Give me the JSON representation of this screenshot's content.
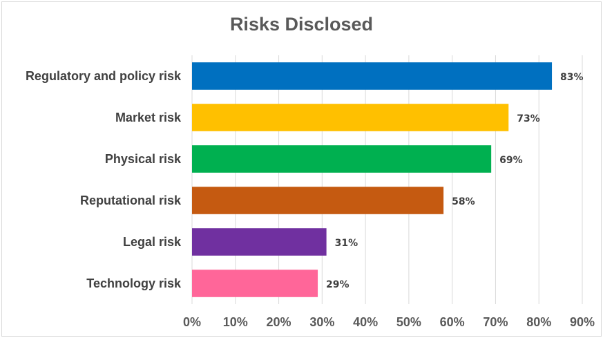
{
  "chart_data": {
    "type": "bar",
    "orientation": "horizontal",
    "title": "Risks Disclosed",
    "xlabel": "",
    "ylabel": "",
    "categories": [
      "Regulatory and policy risk",
      "Market risk",
      "Physical risk",
      "Reputational risk",
      "Legal risk",
      "Technology risk"
    ],
    "values": [
      83,
      73,
      69,
      58,
      31,
      29
    ],
    "data_labels": [
      "83%",
      "73%",
      "69%",
      "58%",
      "31%",
      "29%"
    ],
    "colors": [
      "#0070C0",
      "#FFC000",
      "#00B050",
      "#C55A11",
      "#7030A0",
      "#FF6699"
    ],
    "xlim": [
      0,
      90
    ],
    "x_ticks": [
      0,
      10,
      20,
      30,
      40,
      50,
      60,
      70,
      80,
      90
    ],
    "x_tick_labels": [
      "0%",
      "10%",
      "20%",
      "30%",
      "40%",
      "50%",
      "60%",
      "70%",
      "80%",
      "90%"
    ],
    "grid": true,
    "legend": "none"
  }
}
